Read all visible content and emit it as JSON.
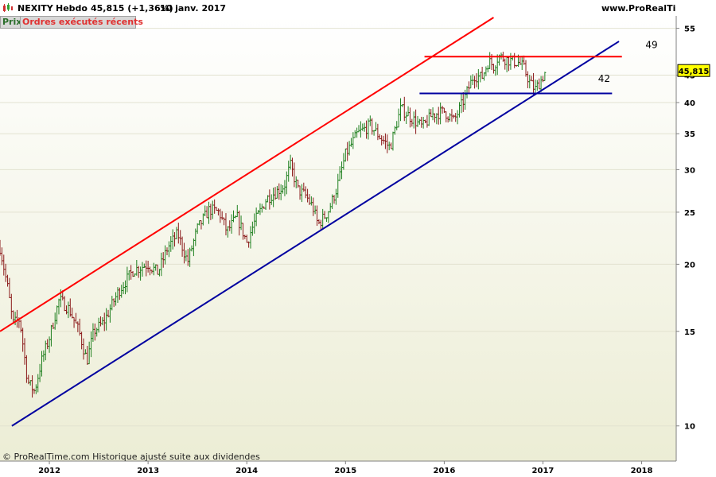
{
  "header": {
    "symbol": "NEXITY",
    "timeframe": "Hebdo",
    "price_change": "45,815 (+1,36%)",
    "date": "10 janv. 2017",
    "site": "www.ProRealTime.com"
  },
  "tabs": {
    "prix": "Prix",
    "orders": "Ordres exécutés récents"
  },
  "footer": {
    "copyright": "© ProRealTime.com  Historique ajusté suite aux dividendes"
  },
  "colors": {
    "up": "#208020",
    "down": "#8b1a1a",
    "resistance": "#ff0000",
    "support": "#0000a0",
    "last_price_bg": "#ffff00"
  },
  "chart_data": {
    "type": "ohlc",
    "yscale": "log",
    "ylim": [
      8.6,
      58
    ],
    "xlim": [
      2011.5,
      2018.35
    ],
    "yticks": [
      10,
      15,
      20,
      25,
      30,
      35,
      40,
      45,
      55
    ],
    "ytick_labels": [
      "10",
      "15",
      "20",
      "25",
      "30",
      "35",
      "40",
      "45",
      "55"
    ],
    "xticks": [
      2012,
      2013,
      2014,
      2015,
      2016,
      2017,
      2018
    ],
    "xtick_labels": [
      "2012",
      "2013",
      "2014",
      "2015",
      "2016",
      "2017",
      "2018"
    ],
    "last_price": 45.815,
    "last_price_label": "45,815",
    "anchors": [
      [
        2011.5,
        21.5
      ],
      [
        2011.58,
        18.0
      ],
      [
        2011.63,
        15.5
      ],
      [
        2011.7,
        15.8
      ],
      [
        2011.78,
        12.1
      ],
      [
        2011.85,
        11.6
      ],
      [
        2011.92,
        13.2
      ],
      [
        2012.0,
        14.6
      ],
      [
        2012.1,
        17.2
      ],
      [
        2012.2,
        16.5
      ],
      [
        2012.3,
        15.0
      ],
      [
        2012.38,
        13.2
      ],
      [
        2012.45,
        15.0
      ],
      [
        2012.55,
        15.6
      ],
      [
        2012.7,
        17.8
      ],
      [
        2012.85,
        19.5
      ],
      [
        2013.0,
        20.0
      ],
      [
        2013.1,
        19.3
      ],
      [
        2013.2,
        21.5
      ],
      [
        2013.3,
        22.8
      ],
      [
        2013.4,
        20.2
      ],
      [
        2013.5,
        23.3
      ],
      [
        2013.62,
        25.3
      ],
      [
        2013.72,
        25.0
      ],
      [
        2013.8,
        23.0
      ],
      [
        2013.9,
        24.5
      ],
      [
        2014.0,
        22.0
      ],
      [
        2014.08,
        24.0
      ],
      [
        2014.2,
        26.5
      ],
      [
        2014.3,
        27.3
      ],
      [
        2014.38,
        28.0
      ],
      [
        2014.44,
        30.6
      ],
      [
        2014.52,
        27.5
      ],
      [
        2014.6,
        26.8
      ],
      [
        2014.67,
        25.5
      ],
      [
        2014.72,
        23.7
      ],
      [
        2014.82,
        25.0
      ],
      [
        2014.9,
        27.3
      ],
      [
        2015.0,
        32.0
      ],
      [
        2015.12,
        35.0
      ],
      [
        2015.25,
        36.3
      ],
      [
        2015.35,
        34.5
      ],
      [
        2015.45,
        33.0
      ],
      [
        2015.56,
        39.0
      ],
      [
        2015.7,
        37.0
      ],
      [
        2015.78,
        36.0
      ],
      [
        2015.88,
        38.0
      ],
      [
        2016.0,
        38.5
      ],
      [
        2016.1,
        37.0
      ],
      [
        2016.2,
        40.5
      ],
      [
        2016.3,
        45.0
      ],
      [
        2016.38,
        44.5
      ],
      [
        2016.45,
        47.8
      ],
      [
        2016.5,
        46.8
      ],
      [
        2016.55,
        48.8
      ],
      [
        2016.65,
        48.0
      ],
      [
        2016.75,
        47.5
      ],
      [
        2016.8,
        46.6
      ],
      [
        2016.87,
        43.5
      ],
      [
        2016.92,
        42.3
      ],
      [
        2016.98,
        44.0
      ],
      [
        2017.03,
        45.815
      ]
    ],
    "lines": [
      {
        "name": "resistance-channel",
        "color": "#ff0000",
        "points": [
          [
            2011.5,
            15.0
          ],
          [
            2016.5,
            57.6
          ]
        ]
      },
      {
        "name": "support-channel",
        "color": "#0000a0",
        "points": [
          [
            2011.62,
            10.0
          ],
          [
            2017.77,
            52.0
          ]
        ]
      },
      {
        "name": "resistance-49",
        "color": "#ff0000",
        "points": [
          [
            2015.8,
            48.7
          ],
          [
            2017.8,
            48.7
          ]
        ]
      },
      {
        "name": "support-42",
        "color": "#0000a0",
        "points": [
          [
            2015.75,
            41.6
          ],
          [
            2017.7,
            41.6
          ]
        ]
      }
    ],
    "annotations": [
      {
        "text": "49",
        "x": 2018.1,
        "y": 50.5
      },
      {
        "text": "42",
        "x": 2017.62,
        "y": 43.7
      }
    ]
  }
}
